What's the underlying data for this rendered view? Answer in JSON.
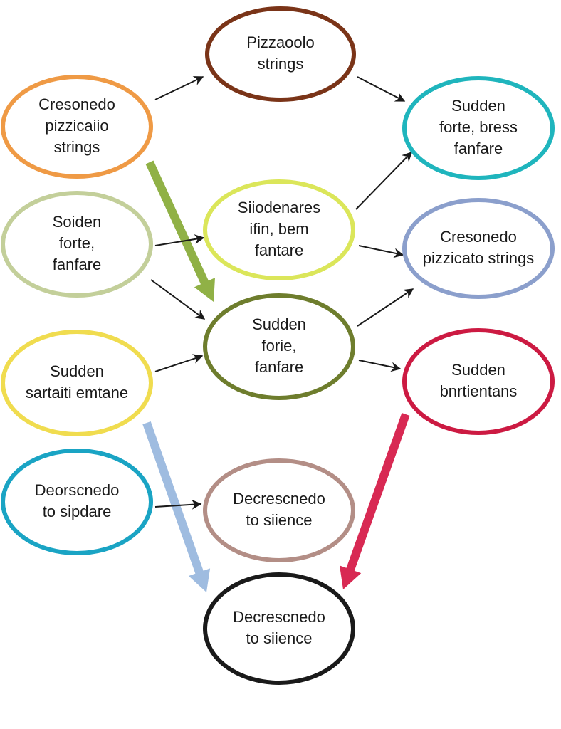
{
  "nodes": [
    {
      "id": "n1",
      "lines": [
        "Pizzaoolo",
        "strings"
      ],
      "color": "#7a3418"
    },
    {
      "id": "n2",
      "lines": [
        "Cresonedo",
        "pizzicaiio",
        "strings"
      ],
      "color": "#ef9a45"
    },
    {
      "id": "n3",
      "lines": [
        "Sudden",
        "forte, bress",
        "fanfare"
      ],
      "color": "#1fb5bd"
    },
    {
      "id": "n4",
      "lines": [
        "Soiden",
        "forte,",
        "fanfare"
      ],
      "color": "#c3cf9a"
    },
    {
      "id": "n5",
      "lines": [
        "Siiodenares",
        "ifin, bem",
        "fantare"
      ],
      "color": "#dbe65a"
    },
    {
      "id": "n6",
      "lines": [
        "Cresonedo",
        "pizzicato strings"
      ],
      "color": "#8b9fcc"
    },
    {
      "id": "n7",
      "lines": [
        "Sudden",
        "forie,",
        "fanfare"
      ],
      "color": "#6e7d2d"
    },
    {
      "id": "n8",
      "lines": [
        "Sudden",
        "sartaiti emtane"
      ],
      "color": "#f0dc4f"
    },
    {
      "id": "n9",
      "lines": [
        "Sudden",
        "bnrtientans"
      ],
      "color": "#cc1a42"
    },
    {
      "id": "n10",
      "lines": [
        "Deorscnedo",
        "to sipdare"
      ],
      "color": "#1aa4c4"
    },
    {
      "id": "n11",
      "lines": [
        "Decrescnedo",
        "to siience"
      ],
      "color": "#b38e86"
    },
    {
      "id": "n12",
      "lines": [
        "Decrescnedo",
        "to siience"
      ],
      "color": "#1a1a1a"
    }
  ],
  "connectors": [
    {
      "id": "c1",
      "from": "n2",
      "to": "n1"
    },
    {
      "id": "c2",
      "from": "n1",
      "to": "n3"
    },
    {
      "id": "c3",
      "from": "n5",
      "to": "n3"
    },
    {
      "id": "c4",
      "from": "n4",
      "to": "n5"
    },
    {
      "id": "c5",
      "from": "n5",
      "to": "n6"
    },
    {
      "id": "c6",
      "from": "n4",
      "to": "n7"
    },
    {
      "id": "c7",
      "from": "n7",
      "to": "n6"
    },
    {
      "id": "c8",
      "from": "n8",
      "to": "n7"
    },
    {
      "id": "c9",
      "from": "n7",
      "to": "n9"
    },
    {
      "id": "c10",
      "from": "n10",
      "to": "n11"
    }
  ],
  "thick_arrows": [
    {
      "id": "t1",
      "from": "n2",
      "to": "n7",
      "color": "#8aad3c"
    },
    {
      "id": "t2",
      "from": "n8",
      "to": "n12",
      "color": "#9ab8de"
    },
    {
      "id": "t3",
      "from": "n9",
      "to": "n12",
      "color": "#d61d4a"
    }
  ]
}
